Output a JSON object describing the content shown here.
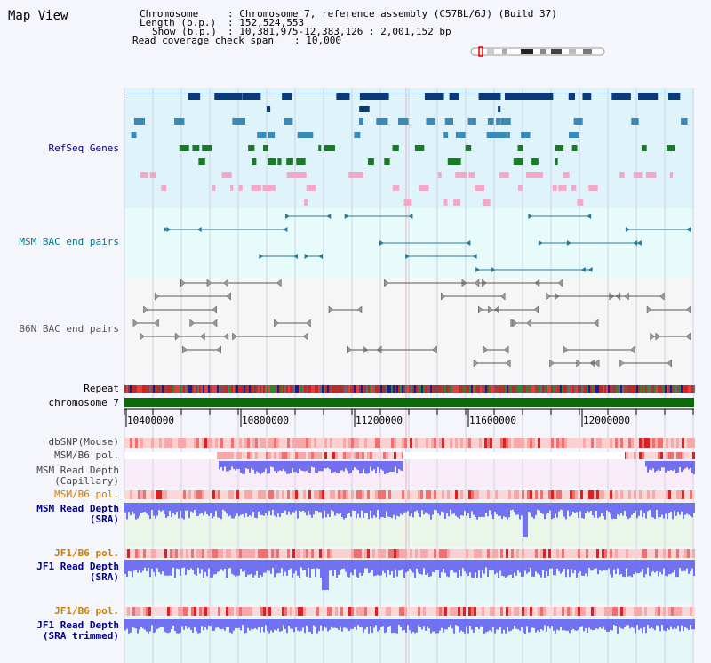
{
  "header": {
    "title": "Map View",
    "chromosome_key": "Chromosome",
    "chromosome_val": ": Chromosome 7, reference assembly (C57BL/6J) (Build 37)",
    "length_key": "Length (b.p.)",
    "length_val": ": 152,524,553",
    "show_key": "Show (b.p.)",
    "show_val": ": 10,381,975-12,383,126 : 2,001,152 bp",
    "coverage_key": "Read coverage check span",
    "coverage_val": ": 10,000"
  },
  "tracks": {
    "refseq": "RefSeq Genes",
    "msm_bac": "MSM BAC end pairs",
    "b6n_bac": "B6N BAC end pairs",
    "repeat": "Repeat",
    "chromosome": "chromosome 7",
    "dbsnp": "dbSNP(Mouse)",
    "msm_b6_pol_1": "MSM/B6 pol.",
    "msm_read_depth_cap": "MSM Read Depth\n(Capillary)",
    "msm_b6_pol_2": "MSM/B6 pol.",
    "msm_read_depth_sra": "MSM Read Depth\n(SRA)",
    "jf1_b6_pol_1": "JF1/B6 pol.",
    "jf1_read_depth_sra": "JF1 Read Depth\n(SRA)",
    "jf1_b6_pol_2": "JF1/B6 pol.",
    "jf1_read_depth_trim": "JF1 Read Depth\n(SRA trimmed)"
  },
  "axis": {
    "ticks": [
      "10400000",
      "10800000",
      "11200000",
      "11600000",
      "12000000"
    ]
  },
  "colors": {
    "refseq_bg": "#dff3fb",
    "bac_bg": "#e8fbfb",
    "gene_dark": "#0a3a78",
    "gene_mid": "#3a8ab8",
    "gene_green": "#1a7a2a",
    "gene_pink": "#f4a8c8",
    "msm_bac": "#2a7a9a",
    "b6n_bac": "#555555",
    "chromosome_bar": "#0a6a0a",
    "depth_blue": "#5a5af0",
    "label_navy": "#00008b",
    "label_teal": "#007b8a",
    "label_orange": "#d08000"
  }
}
